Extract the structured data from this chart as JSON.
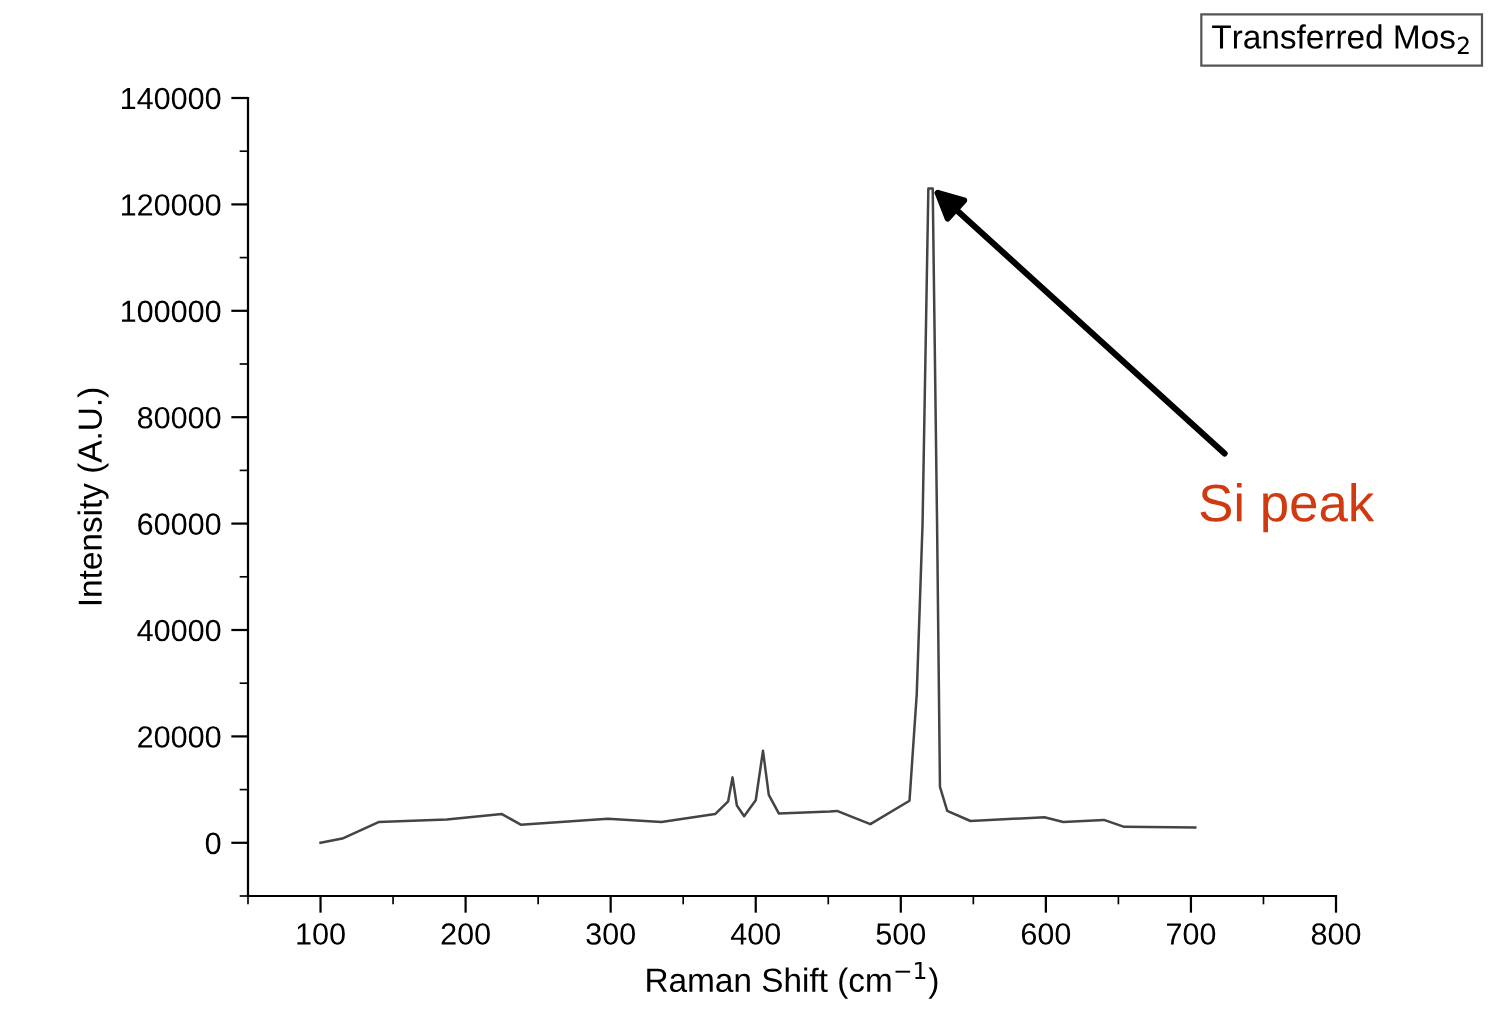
{
  "chart_data": {
    "type": "line",
    "xlabel": "Raman Shift (cm$^{−1}$)",
    "ylabel": "Intensity (A.U.)",
    "x": [
      100,
      115,
      140,
      187,
      225,
      238,
      298,
      335,
      372,
      381,
      384,
      387,
      392,
      400,
      405,
      409,
      416,
      451,
      456,
      479,
      506,
      511,
      515,
      519,
      522,
      525,
      527,
      532,
      548,
      599,
      612,
      640,
      654,
      703
    ],
    "series": [
      {
        "color": "#444444",
        "values": [
          0,
          800,
          3900,
          4400,
          5400,
          3400,
          4500,
          3900,
          5400,
          7800,
          12300,
          7000,
          5000,
          8000,
          17300,
          9000,
          5500,
          5900,
          6000,
          3500,
          7900,
          28000,
          60000,
          123000,
          123000,
          60000,
          10500,
          6000,
          4100,
          4800,
          3900,
          4300,
          3000,
          2900
        ]
      }
    ],
    "xlim": [
      50,
      800
    ],
    "xticks": [
      100,
      200,
      300,
      400,
      500,
      600,
      700,
      800
    ],
    "ylim": [
      -10000,
      140000
    ],
    "yticks": [
      0,
      20000,
      40000,
      60000,
      80000,
      100000,
      120000,
      140000
    ],
    "grid": false,
    "legend": false,
    "annotations": [
      {
        "text": "Si peak",
        "x": 522,
        "y": 123000
      },
      "Transferred Mos$_{2}$"
    ]
  }
}
